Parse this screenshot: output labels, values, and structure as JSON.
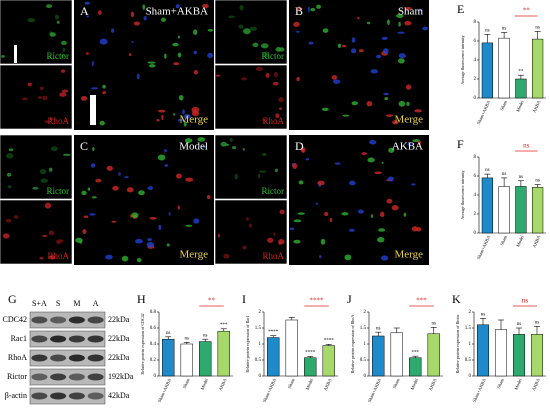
{
  "panels": [
    {
      "label": "A",
      "title": "Sham+AKBA",
      "channels": [
        "Rictor",
        "RhoA"
      ],
      "merge": "Merge"
    },
    {
      "label": "B",
      "title": "Sham",
      "channels": [
        "Rictor",
        "RhoA"
      ],
      "merge": "Merge"
    },
    {
      "label": "C",
      "title": "Model",
      "channels": [
        "Rictor",
        "RhoA"
      ],
      "merge": "Merge"
    },
    {
      "label": "D",
      "title": "AKBA",
      "channels": [
        "Rictor",
        "RhoA"
      ],
      "merge": "Merge"
    }
  ],
  "blot": {
    "label": "G",
    "lanes": [
      "S+A",
      "S",
      "M",
      "A"
    ],
    "rows": [
      {
        "name": "CDC42",
        "size": "22kDa"
      },
      {
        "name": "Rac1",
        "size": "22kDa"
      },
      {
        "name": "RhoA",
        "size": "22kDa"
      },
      {
        "name": "Rictor",
        "size": "192kDa"
      },
      {
        "name": "β-actin",
        "size": "42kDa"
      }
    ]
  },
  "chart_data": [
    {
      "type": "bar",
      "title": "E",
      "ylabel": "Average fluorescence intensity",
      "categories": [
        "Sham+AKBA",
        "Sham",
        "Model",
        "AKBA"
      ],
      "values": [
        5.8,
        6.3,
        2.0,
        6.2
      ],
      "errors": [
        0.9,
        0.6,
        0.4,
        0.8
      ],
      "colors": [
        "#1f8ac9",
        "#ffffff",
        "#2eaa6e",
        "#a6d96a"
      ],
      "annotations": [
        "ns",
        "ns",
        "**",
        "ns"
      ],
      "bracket": "**",
      "ylim": [
        0,
        8
      ],
      "yticks": [
        0,
        2,
        4,
        6,
        8
      ]
    },
    {
      "type": "bar",
      "title": "F",
      "ylabel": "Average fluorescence intensity",
      "categories": [
        "Sham+AKBA",
        "Sham",
        "Model",
        "AKBA"
      ],
      "values": [
        5.8,
        4.9,
        4.9,
        4.8
      ],
      "errors": [
        0.4,
        0.9,
        0.6,
        0.3
      ],
      "colors": [
        "#1f8ac9",
        "#ffffff",
        "#2eaa6e",
        "#a6d96a"
      ],
      "annotations": [
        "ns",
        "ns",
        "ns",
        "ns"
      ],
      "bracket": "ns",
      "ylim": [
        0,
        8
      ],
      "yticks": [
        0,
        2,
        4,
        6,
        8
      ]
    },
    {
      "type": "bar",
      "title": "H",
      "ylabel": "Relative protein expression of CDC42",
      "categories": [
        "Sham+AKBA",
        "Sham",
        "Model",
        "AKBA"
      ],
      "values": [
        0.46,
        0.4,
        0.43,
        0.56
      ],
      "errors": [
        0.03,
        0.02,
        0.03,
        0.03
      ],
      "colors": [
        "#1f8ac9",
        "#ffffff",
        "#2eaa6e",
        "#a6d96a"
      ],
      "annotations": [
        "ns",
        "ns",
        "ns",
        "***"
      ],
      "bracket": "**",
      "ylim": [
        0,
        0.8
      ],
      "yticks": [
        0,
        0.2,
        0.4,
        0.6,
        0.8
      ]
    },
    {
      "type": "bar",
      "title": "I",
      "ylabel": "Relative protein expression of Rac1",
      "categories": [
        "Sham+AKBA",
        "Sham",
        "Model",
        "AKBA"
      ],
      "values": [
        1.2,
        1.75,
        0.57,
        0.95
      ],
      "errors": [
        0.06,
        0.08,
        0.04,
        0.04
      ],
      "colors": [
        "#1f8ac9",
        "#ffffff",
        "#2eaa6e",
        "#a6d96a"
      ],
      "annotations": [
        "****",
        "",
        "****",
        "****"
      ],
      "bracket": "****",
      "ylim": [
        0,
        2
      ],
      "yticks": [
        0,
        0.5,
        1,
        1.5,
        2
      ]
    },
    {
      "type": "bar",
      "title": "J",
      "ylabel": "Relative protein expression of RhoA",
      "categories": [
        "Sham+AKBA",
        "Sham",
        "Model",
        "AKBA"
      ],
      "values": [
        1.25,
        1.35,
        0.57,
        1.32
      ],
      "errors": [
        0.12,
        0.15,
        0.05,
        0.2
      ],
      "colors": [
        "#1f8ac9",
        "#ffffff",
        "#2eaa6e",
        "#a6d96a"
      ],
      "annotations": [
        "ns",
        "",
        "***",
        "ns"
      ],
      "bracket": "***",
      "ylim": [
        0,
        2
      ],
      "yticks": [
        0,
        0.5,
        1,
        1.5,
        2
      ]
    },
    {
      "type": "bar",
      "title": "K",
      "ylabel": "Relative protein expression of Rictor",
      "categories": [
        "Sham+AKBA",
        "Sham",
        "Model",
        "AKBA"
      ],
      "values": [
        1.6,
        1.45,
        1.3,
        1.3
      ],
      "errors": [
        0.2,
        0.3,
        0.2,
        0.25
      ],
      "colors": [
        "#1f8ac9",
        "#ffffff",
        "#2eaa6e",
        "#a6d96a"
      ],
      "annotations": [
        "ns",
        "",
        "ns",
        "ns"
      ],
      "bracket": "ns",
      "ylim": [
        0,
        2
      ],
      "yticks": [
        0,
        0.5,
        1,
        1.5,
        2
      ]
    }
  ]
}
